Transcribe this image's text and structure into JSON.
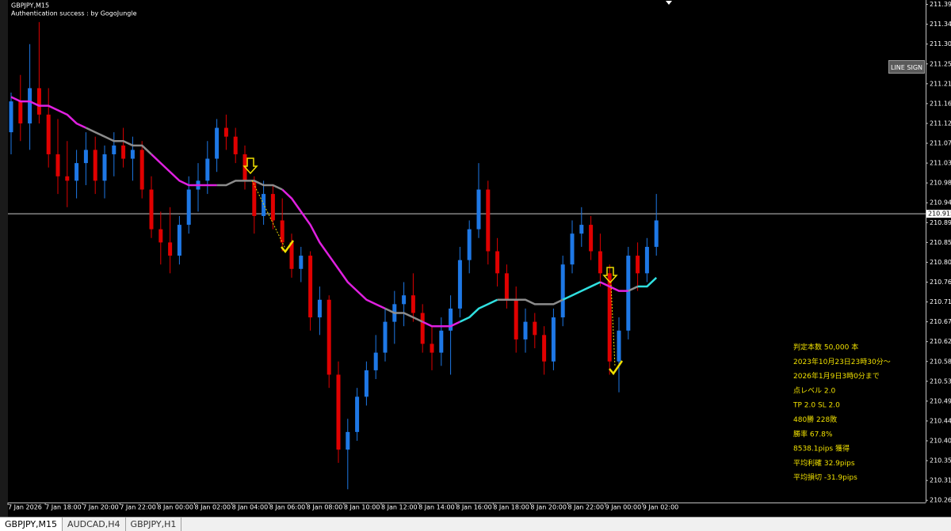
{
  "window": {
    "chart_label": "GBPJPY,M15",
    "auth_text": "Authentication success : by GogoJungle",
    "button": "LINE SIGN",
    "tabs": [
      "GBPJPY,M15",
      "AUDCAD,H4",
      "GBPJPY,H1"
    ],
    "stats": [
      "判定本数 50,000 本",
      "2023年10月23日23時30分～",
      "2026年1月9日3時0分まで",
      "点レベル 2.0",
      "TP 2.0 SL 2.0",
      "480勝 228敗",
      "勝率 67.8%",
      "8538.1pips 獲得",
      "平均利確 32.9pips",
      "平均損切 -31.9pips"
    ]
  },
  "chart_data": {
    "type": "candlestick",
    "up_color": "#1e78e6",
    "down_color": "#e00000",
    "ylim": [
      210.26,
      211.4
    ],
    "yticks": [
      {
        "value": 211.39,
        "label": "211.390"
      },
      211.345,
      {
        "value": 211.3,
        "label": "211.300"
      },
      211.255,
      {
        "value": 211.21,
        "label": "211.210"
      },
      211.165,
      {
        "value": 211.12,
        "label": "211.120"
      },
      211.075,
      {
        "value": 211.03,
        "label": "211.030"
      },
      210.985,
      {
        "value": 210.94,
        "label": "210.940"
      },
      210.895,
      {
        "value": 210.85,
        "label": "210.850"
      },
      210.805,
      {
        "value": 210.76,
        "label": "210.760"
      },
      210.715,
      {
        "value": 210.67,
        "label": "210.670"
      },
      210.625,
      {
        "value": 210.58,
        "label": "210.580"
      },
      210.535,
      {
        "value": 210.49,
        "label": "210.490"
      },
      210.445,
      {
        "value": 210.4,
        "label": "210.400"
      },
      210.355,
      {
        "value": 210.31,
        "label": "210.310"
      },
      210.265
    ],
    "x_labels": [
      "7 Jan 2026",
      "7 Jan 18:00",
      "7 Jan 20:00",
      "7 Jan 22:00",
      "8 Jan 00:00",
      "8 Jan 02:00",
      "8 Jan 04:00",
      "8 Jan 06:00",
      "8 Jan 08:00",
      "8 Jan 10:00",
      "8 Jan 12:00",
      "8 Jan 14:00",
      "8 Jan 16:00",
      "8 Jan 18:00",
      "8 Jan 20:00",
      "8 Jan 22:00",
      "9 Jan 00:00",
      "9 Jan 02:00"
    ],
    "current_price": 210.915,
    "ohlc": [
      [
        211.1,
        211.19,
        211.05,
        211.17
      ],
      [
        211.17,
        211.23,
        211.08,
        211.12
      ],
      [
        211.12,
        211.3,
        211.06,
        211.2
      ],
      [
        211.2,
        211.35,
        211.12,
        211.14
      ],
      [
        211.14,
        211.2,
        211.02,
        211.05
      ],
      [
        211.05,
        211.13,
        210.96,
        211.0
      ],
      [
        211.0,
        211.08,
        210.93,
        210.99
      ],
      [
        210.99,
        211.06,
        210.95,
        211.03
      ],
      [
        211.03,
        211.1,
        210.98,
        211.06
      ],
      [
        211.06,
        211.09,
        210.96,
        210.99
      ],
      [
        210.99,
        211.07,
        210.95,
        211.05
      ],
      [
        211.05,
        211.1,
        211.0,
        211.07
      ],
      [
        211.07,
        211.11,
        211.02,
        211.04
      ],
      [
        211.04,
        211.09,
        210.99,
        211.06
      ],
      [
        211.06,
        211.08,
        210.95,
        210.97
      ],
      [
        210.97,
        211.0,
        210.86,
        210.88
      ],
      [
        210.88,
        210.92,
        210.8,
        210.85
      ],
      [
        210.85,
        210.93,
        210.78,
        210.82
      ],
      [
        210.82,
        210.91,
        210.8,
        210.89
      ],
      [
        210.89,
        211.0,
        210.87,
        210.97
      ],
      [
        210.97,
        211.03,
        210.92,
        210.99
      ],
      [
        210.99,
        211.08,
        210.96,
        211.04
      ],
      [
        211.04,
        211.13,
        211.01,
        211.11
      ],
      [
        211.11,
        211.14,
        211.06,
        211.09
      ],
      [
        211.09,
        211.11,
        211.03,
        211.05
      ],
      [
        211.05,
        211.07,
        210.97,
        210.99
      ],
      [
        210.99,
        211.0,
        210.87,
        210.91
      ],
      [
        210.91,
        210.99,
        210.89,
        210.96
      ],
      [
        210.96,
        210.98,
        210.88,
        210.9
      ],
      [
        210.9,
        210.95,
        210.83,
        210.85
      ],
      [
        210.85,
        210.87,
        210.77,
        210.79
      ],
      [
        210.79,
        210.84,
        210.76,
        210.82
      ],
      [
        210.82,
        210.83,
        210.65,
        210.68
      ],
      [
        210.68,
        210.75,
        210.64,
        210.72
      ],
      [
        210.72,
        210.73,
        210.52,
        210.55
      ],
      [
        210.55,
        210.58,
        210.35,
        210.38
      ],
      [
        210.38,
        210.45,
        210.29,
        210.42
      ],
      [
        210.42,
        210.52,
        210.4,
        210.5
      ],
      [
        210.5,
        210.58,
        210.48,
        210.56
      ],
      [
        210.56,
        210.64,
        210.54,
        210.6
      ],
      [
        210.6,
        210.7,
        210.58,
        210.67
      ],
      [
        210.67,
        210.74,
        210.62,
        210.71
      ],
      [
        210.71,
        210.76,
        210.66,
        210.73
      ],
      [
        210.73,
        210.78,
        210.67,
        210.69
      ],
      [
        210.69,
        210.71,
        210.6,
        210.62
      ],
      [
        210.62,
        210.66,
        210.56,
        210.6
      ],
      [
        210.6,
        210.68,
        210.57,
        210.65
      ],
      [
        210.65,
        210.73,
        210.55,
        210.7
      ],
      [
        210.7,
        210.84,
        210.68,
        210.81
      ],
      [
        210.81,
        210.9,
        210.78,
        210.88
      ],
      [
        210.88,
        211.03,
        210.86,
        210.97
      ],
      [
        210.97,
        210.99,
        210.8,
        210.83
      ],
      [
        210.83,
        210.86,
        210.75,
        210.78
      ],
      [
        210.78,
        210.8,
        210.7,
        210.72
      ],
      [
        210.72,
        210.75,
        210.6,
        210.63
      ],
      [
        210.63,
        210.7,
        210.6,
        210.67
      ],
      [
        210.67,
        210.69,
        210.61,
        210.64
      ],
      [
        210.64,
        210.66,
        210.55,
        210.58
      ],
      [
        210.58,
        210.7,
        210.56,
        210.68
      ],
      [
        210.68,
        210.82,
        210.66,
        210.8
      ],
      [
        210.8,
        210.9,
        210.78,
        210.87
      ],
      [
        210.87,
        210.93,
        210.84,
        210.89
      ],
      [
        210.89,
        210.91,
        210.81,
        210.83
      ],
      [
        210.83,
        210.87,
        210.75,
        210.78
      ],
      [
        210.78,
        210.8,
        210.55,
        210.58
      ],
      [
        210.58,
        210.68,
        210.51,
        210.65
      ],
      [
        210.65,
        210.84,
        210.63,
        210.82
      ],
      [
        210.82,
        210.85,
        210.74,
        210.78
      ],
      [
        210.78,
        210.86,
        210.76,
        210.84
      ],
      [
        210.84,
        210.96,
        210.82,
        210.9
      ]
    ],
    "lines": [
      {
        "color": "#e020e0",
        "values": [
          211.18,
          211.17,
          211.17,
          211.16,
          211.16,
          211.15,
          211.14,
          211.12,
          211.11,
          null,
          null,
          null,
          null,
          null,
          null,
          211.05,
          211.03,
          211.01,
          210.99,
          210.98,
          210.98,
          210.98,
          210.98,
          null,
          null,
          null,
          null,
          null,
          null,
          210.97,
          210.95,
          210.92,
          210.89,
          210.85,
          210.82,
          210.79,
          210.76,
          210.74,
          210.72,
          210.71,
          210.7,
          null,
          null,
          null,
          210.67,
          210.66,
          210.66,
          210.66,
          210.67,
          null,
          null,
          null,
          null,
          null,
          null,
          null,
          null,
          null,
          null,
          null,
          null,
          null,
          null,
          210.76,
          210.75,
          210.74,
          210.74,
          null,
          null,
          null
        ]
      },
      {
        "color": "#8c8c8c",
        "values": [
          null,
          null,
          null,
          null,
          null,
          null,
          null,
          null,
          211.11,
          211.1,
          211.09,
          211.08,
          211.08,
          211.07,
          211.07,
          211.05,
          null,
          null,
          null,
          null,
          null,
          null,
          210.98,
          210.98,
          210.99,
          210.99,
          210.99,
          210.98,
          210.98,
          210.97,
          null,
          null,
          null,
          null,
          null,
          null,
          null,
          null,
          null,
          null,
          210.7,
          210.69,
          210.69,
          210.68,
          210.67,
          null,
          null,
          null,
          null,
          null,
          null,
          null,
          210.72,
          210.72,
          210.72,
          210.72,
          210.71,
          210.71,
          210.71,
          210.72,
          null,
          null,
          null,
          null,
          null,
          null,
          210.74,
          210.75,
          null,
          null
        ]
      },
      {
        "color": "#30e0e0",
        "values": [
          null,
          null,
          null,
          null,
          null,
          null,
          null,
          null,
          null,
          null,
          null,
          null,
          null,
          null,
          null,
          null,
          null,
          null,
          null,
          null,
          null,
          null,
          null,
          null,
          null,
          null,
          null,
          null,
          null,
          null,
          null,
          null,
          null,
          null,
          null,
          null,
          null,
          null,
          null,
          null,
          null,
          null,
          null,
          null,
          null,
          null,
          null,
          null,
          210.67,
          210.68,
          210.7,
          210.71,
          210.72,
          null,
          null,
          null,
          null,
          null,
          null,
          210.72,
          210.73,
          210.74,
          210.75,
          210.76,
          null,
          null,
          null,
          210.75,
          210.75,
          210.77
        ]
      }
    ]
  }
}
